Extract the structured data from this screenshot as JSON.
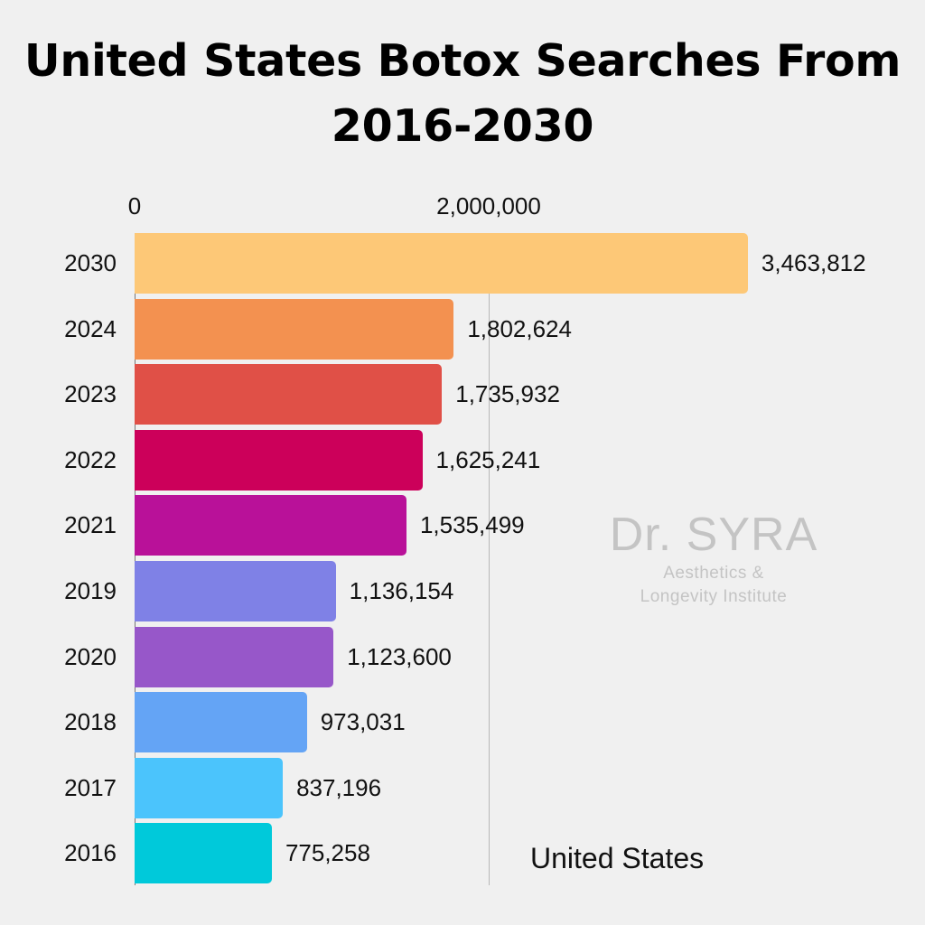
{
  "title": "United States Botox Searches From 2016-2030",
  "title_lines": [
    "United States Botox Searches From",
    "2016-2030"
  ],
  "axis": {
    "ticks": [
      {
        "label": "0",
        "value": 0
      },
      {
        "label": "2,000,000",
        "value": 2000000
      }
    ]
  },
  "watermark": {
    "name": "Dr. SYRA",
    "line1": "Aesthetics &",
    "line2": "Longevity Institute"
  },
  "region_label": "United States",
  "chart_data": {
    "type": "bar",
    "orientation": "horizontal",
    "title": "United States Botox Searches From 2016-2030",
    "xlabel": "",
    "ylabel": "",
    "xlim": [
      0,
      3600000
    ],
    "grid": true,
    "legend": "none",
    "annotation": "United States",
    "categories": [
      "2030",
      "2024",
      "2023",
      "2022",
      "2021",
      "2019",
      "2020",
      "2018",
      "2017",
      "2016"
    ],
    "values": [
      3463812,
      1802624,
      1735932,
      1625241,
      1535499,
      1136154,
      1123600,
      973031,
      837196,
      775258
    ],
    "value_labels": [
      "3,463,812",
      "1,802,624",
      "1,735,932",
      "1,625,241",
      "1,535,499",
      "1,136,154",
      "1,123,600",
      "973,031",
      "837,196",
      "775,258"
    ],
    "colors": [
      "#fdc877",
      "#f39150",
      "#e05047",
      "#cc005a",
      "#b91199",
      "#7f81e6",
      "#9757c9",
      "#64a4f5",
      "#4bc4fc",
      "#00c9da"
    ],
    "tick_values": [
      0,
      2000000
    ],
    "tick_labels": [
      "0",
      "2,000,000"
    ]
  }
}
